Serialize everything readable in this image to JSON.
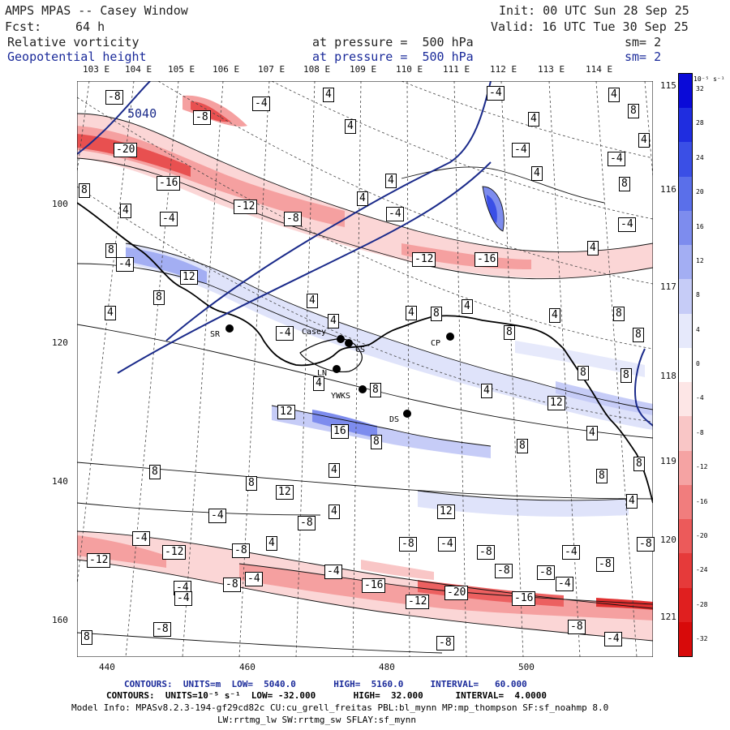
{
  "header": {
    "title": "AMPS MPAS -- Casey Window",
    "init": "Init: 00 UTC Sun 28 Sep 25",
    "fcst_label": "Fcst:",
    "fcst_value": "64 h",
    "valid": "Valid: 16 UTC Tue 30 Sep 25",
    "field1": "Relative vorticity",
    "field1_pressure": "at pressure =  500 hPa",
    "field1_sm": "sm= 2",
    "field2": "Geopotential height",
    "field2_pressure": "at pressure =  500 hPa",
    "field2_sm": "sm= 2"
  },
  "longitude_labels_top": [
    "103 E",
    "104 E",
    "105 E",
    "106 E",
    "107 E",
    "108 E",
    "109 E",
    "110 E",
    "111 E",
    "112 E",
    "113 E",
    "114 E"
  ],
  "longitude_labels_right": [
    "115 E",
    "116 E",
    "117 E",
    "118 E",
    "119 E",
    "120 E",
    "121 E"
  ],
  "y_axis_labels": [
    "100",
    "120",
    "140",
    "160"
  ],
  "x_axis_labels": [
    "440",
    "460",
    "480",
    "500"
  ],
  "colorbar": {
    "unit": "10⁻⁵ s⁻¹",
    "levels": [
      "32",
      "28",
      "24",
      "20",
      "16",
      "12",
      "8",
      "4",
      "0",
      "-4",
      "-8",
      "-12",
      "-16",
      "-20",
      "-24",
      "-28",
      "-32"
    ],
    "colors": [
      "#0a0ad8",
      "#1f2de0",
      "#3a4fe6",
      "#5a6fea",
      "#7d8cee",
      "#a3aef3",
      "#c6ccf7",
      "#e6e9fb",
      "#ffffff",
      "#fde6e6",
      "#f9c6c6",
      "#f5a3a3",
      "#f17d7d",
      "#ec5a5a",
      "#e63a3a",
      "#e01f1f",
      "#d80a0a"
    ]
  },
  "stations": [
    {
      "label": "Casey"
    },
    {
      "label": "CS"
    },
    {
      "label": "SR"
    },
    {
      "label": "CP"
    },
    {
      "label": "YWKS"
    },
    {
      "label": "DS"
    },
    {
      "label": "LN"
    }
  ],
  "height_contour_label": "5040",
  "contour_value_labels": [
    "-8",
    "-4",
    "-4",
    "4",
    "-4",
    "4",
    "4",
    "4",
    "-8",
    "-20",
    "-16",
    "-12",
    "-8",
    "4",
    "8",
    "4",
    "4",
    "4",
    "-4",
    "-4",
    "8",
    "-4",
    "8",
    "4",
    "-4",
    "-12",
    "-16",
    "4",
    "-4",
    "12",
    "8",
    "4",
    "4",
    "4",
    "8",
    "8",
    "-4",
    "4",
    "4",
    "8",
    "8",
    "4",
    "8",
    "12",
    "12",
    "16",
    "8",
    "8",
    "8",
    "8",
    "8",
    "4",
    "8",
    "12",
    "4",
    "8",
    "12",
    "4",
    "-4",
    "-8",
    "-4",
    "4",
    "-8",
    "-8",
    "-4",
    "-8",
    "-12",
    "-12",
    "-8",
    "-4",
    "-8",
    "-16",
    "-20",
    "-16",
    "-4",
    "-8",
    "-12",
    "-8",
    "-4",
    "-8",
    "-4",
    "8",
    "-8",
    "-4",
    "-4",
    "-8",
    "-4",
    "-8",
    "8",
    "4",
    "4",
    "4",
    "8"
  ],
  "footer": {
    "height_contours": "CONTOURS:  UNITS=m  LOW=  5040.0       HIGH=  5160.0     INTERVAL=   60.000",
    "vort_contours": "CONTOURS:  UNITS=10⁻⁵ s⁻¹  LOW= -32.000       HIGH=  32.000      INTERVAL=  4.0000",
    "model_info": "Model Info: MPASv8.2.3-194-gf29cd82c CU:cu_grell_freitas PBL:bl_mynn MP:mp_thompson SF:sf_noahmp 8.0",
    "model_info2": "LW:rrtmg_lw SW:rrtmg_sw SFLAY:sf_mynn"
  }
}
